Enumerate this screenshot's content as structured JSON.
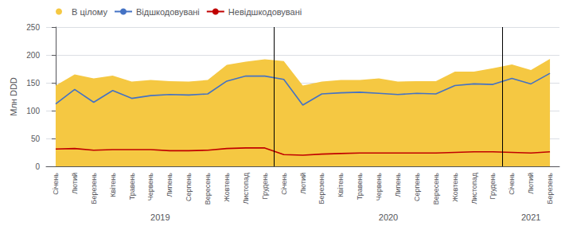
{
  "chart_data": {
    "type": "line",
    "categories": [
      "Січень",
      "Лютий",
      "Березень",
      "Квітень",
      "Травень",
      "Червень",
      "Липень",
      "Серпень",
      "Вересень",
      "Жовтень",
      "Листопад",
      "Грудень",
      "Січень",
      "Лютий",
      "Березень",
      "Квітень",
      "Травень",
      "Червень",
      "Липень",
      "Серпень",
      "Вересень",
      "Жовтень",
      "Листопад",
      "Грудень",
      "Січень",
      "Лютий",
      "Березень"
    ],
    "series": [
      {
        "name": "В цілому",
        "type": "area",
        "color": "#F5C842",
        "values": [
          145,
          165,
          158,
          163,
          152,
          155,
          153,
          152,
          155,
          182,
          188,
          192,
          189,
          145,
          152,
          155,
          155,
          158,
          152,
          153,
          153,
          170,
          170,
          176,
          183,
          173,
          193
        ]
      },
      {
        "name": "Відшкодовувані",
        "type": "line",
        "color": "#4472C4",
        "values": [
          112,
          138,
          115,
          136,
          122,
          127,
          129,
          128,
          130,
          153,
          162,
          162,
          156,
          110,
          130,
          132,
          133,
          131,
          129,
          131,
          130,
          145,
          148,
          147,
          158,
          148,
          167
        ]
      },
      {
        "name": "Невідшкодовувані",
        "type": "line",
        "color": "#C00000",
        "values": [
          31,
          32,
          29,
          30,
          30,
          30,
          28,
          28,
          29,
          32,
          33,
          33,
          21,
          20,
          22,
          23,
          24,
          24,
          24,
          24,
          24,
          25,
          26,
          26,
          25,
          24,
          26
        ]
      }
    ],
    "ylabel": "Млн DDD",
    "ylim": [
      0,
      250
    ],
    "yticks": [
      0,
      50,
      100,
      150,
      200,
      250
    ],
    "grid": true,
    "legend": "upper left",
    "annotations": [
      {
        "text": "2019",
        "x": 5.5
      },
      {
        "text": "2020",
        "x": 17.5
      },
      {
        "text": "2021",
        "x": 25.0
      }
    ],
    "separators": [
      11.5,
      23.5
    ]
  }
}
